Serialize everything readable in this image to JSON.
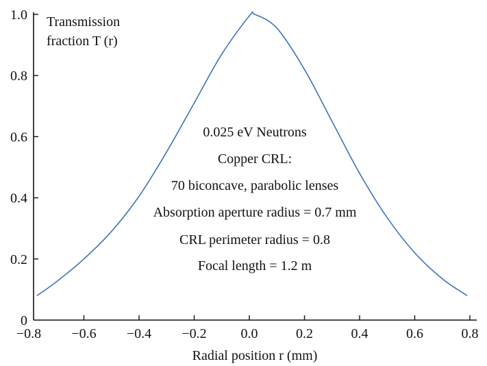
{
  "chart_data": {
    "type": "line",
    "title": "",
    "ylabel_lines": [
      "Transmission",
      "fraction T (r)"
    ],
    "xlabel": "Radial position r (mm)",
    "xlim": [
      -0.8,
      0.8
    ],
    "ylim": [
      0,
      1.0
    ],
    "x_ticks": [
      -0.8,
      -0.6,
      -0.4,
      -0.2,
      0.0,
      0.2,
      0.4,
      0.6,
      0.8
    ],
    "x_tick_labels": [
      "−0.8",
      "−0.6",
      "−0.4",
      "−0.2",
      "0.0",
      "0.2",
      "0.4",
      "0.6",
      "0.8"
    ],
    "y_ticks": [
      0,
      0.2,
      0.4,
      0.6,
      0.8,
      1.0
    ],
    "y_tick_labels": [
      "0",
      "0.2",
      "0.4",
      "0.6",
      "0.8",
      "1.0"
    ],
    "grid": false,
    "series": [
      {
        "color": "#3a74b8",
        "x": [
          -0.77,
          -0.7,
          -0.6,
          -0.5,
          -0.4,
          -0.3,
          -0.2,
          -0.1,
          0.0,
          0.02,
          0.1,
          0.2,
          0.3,
          0.4,
          0.5,
          0.6,
          0.7,
          0.79
        ],
        "y": [
          0.08,
          0.125,
          0.2,
          0.29,
          0.405,
          0.55,
          0.71,
          0.87,
          0.995,
          1.0,
          0.955,
          0.82,
          0.65,
          0.48,
          0.335,
          0.22,
          0.135,
          0.08
        ]
      }
    ],
    "annotations": [
      "0.025 eV Neutrons",
      "Copper CRL:",
      "70 biconcave, parabolic lenses",
      "Absorption aperture radius = 0.7 mm",
      "CRL perimeter radius = 0.8",
      "Focal length = 1.2 m"
    ]
  }
}
